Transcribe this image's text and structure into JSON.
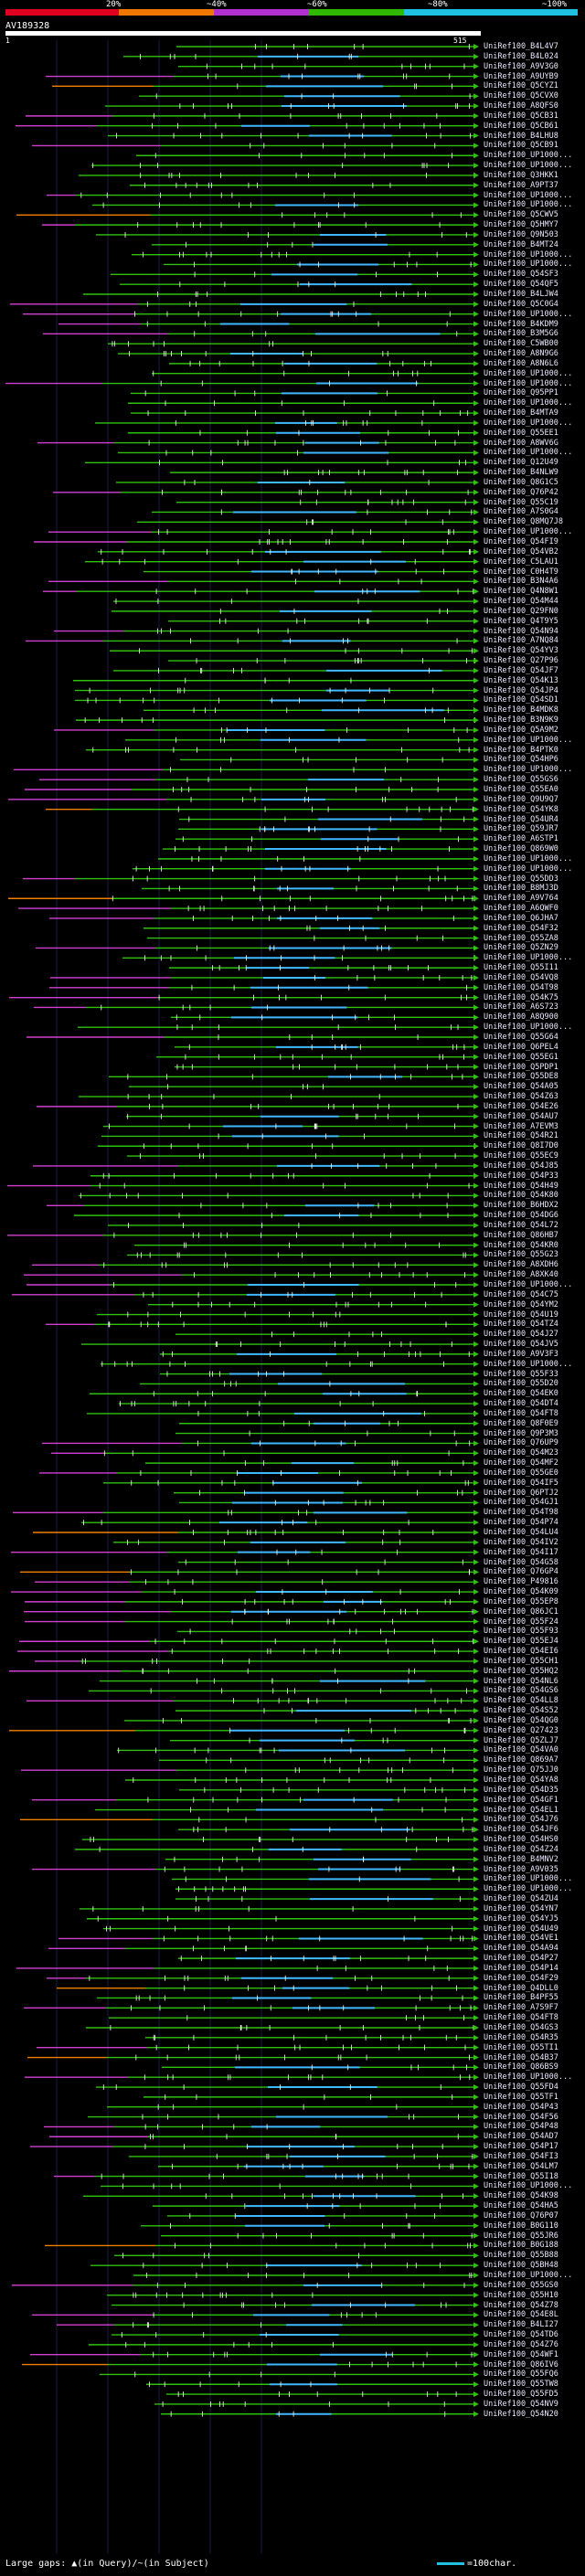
{
  "scale": {
    "labels": [
      "20%",
      "~40%",
      "~60%",
      "~80%",
      "~100%"
    ],
    "colors": [
      "#e00020",
      "#f07800",
      "#b030d0",
      "#30b800",
      "#20c0e0"
    ]
  },
  "query": {
    "id": "AV189328",
    "start": "1",
    "end": "515"
  },
  "colors": {
    "pink": "#d040d0",
    "green": "#30c010",
    "orange": "#f08000",
    "blue": "#40b8ff",
    "gray_grid": "#404040",
    "grid_blue": "#202060"
  },
  "hits": [
    "UniRef100_B4L4V7",
    "UniRef100_B4L024",
    "UniRef100_A9V3G0",
    "UniRef100_A9UYB9",
    "UniRef100_Q5CYZ1",
    "UniRef100_Q5CVX0",
    "UniRef100_A8QFS0",
    "UniRef100_Q5CB31",
    "UniRef100_Q5CB61",
    "UniRef100_B4LHU8",
    "UniRef100_Q5CB91",
    "UniRef100_UP1000...",
    "UniRef100_UP1000...",
    "UniRef100_Q3HKK1",
    "UniRef100_A9PT37",
    "UniRef100_UP1000...",
    "UniRef100_UP1000...",
    "UniRef100_Q5CWV5",
    "UniRef100_Q5HMY7",
    "UniRef100_Q9N503",
    "UniRef100_B4MT24",
    "UniRef100_UP1000...",
    "UniRef100_UP1000...",
    "UniRef100_Q54SF3",
    "UniRef100_Q54QF5",
    "UniRef100_B4LJW4",
    "UniRef100_Q5C0G4",
    "UniRef100_UP1000...",
    "UniRef100_B4KDM9",
    "UniRef100_B3M5G6",
    "UniRef100_C5WB00",
    "UniRef100_A8N9G6",
    "UniRef100_A8N6L6",
    "UniRef100_UP1000...",
    "UniRef100_UP1000...",
    "UniRef100_Q95PP1",
    "UniRef100_UP1000...",
    "UniRef100_B4MTA9",
    "UniRef100_UP1000...",
    "UniRef100_Q55EE1",
    "UniRef100_A8WV6G",
    "UniRef100_UP1000...",
    "UniRef100_Q12U49",
    "UniRef100_B4NLW9",
    "UniRef100_Q8G1C5",
    "UniRef100_Q76P42",
    "UniRef100_Q55C19",
    "UniRef100_A7S0G4",
    "UniRef100_Q8MQ7J8",
    "UniRef100_UP1000...",
    "UniRef100_Q54FI9",
    "UniRef100_Q54VB2",
    "UniRef100_C5LAU1",
    "UniRef100_C0H4T9",
    "UniRef100_B3N4A6",
    "UniRef100_Q4N8W1",
    "UniRef100_Q54M44",
    "UniRef100_Q29FN0",
    "UniRef100_Q4T9Y5",
    "UniRef100_Q54N94",
    "UniRef100_A7NQ84",
    "UniRef100_Q54YV3",
    "UniRef100_Q27P96",
    "UniRef100_Q54JF7",
    "UniRef100_Q54K13",
    "UniRef100_Q54JP4",
    "UniRef100_Q54SD1",
    "UniRef100_B4MDK8",
    "UniRef100_B3N9K9",
    "UniRef100_Q5A9M2",
    "UniRef100_UP1000...",
    "UniRef100_B4PTK0",
    "UniRef100_Q54HP6",
    "UniRef100_UP1000...",
    "UniRef100_Q55GS6",
    "UniRef100_Q55EA0",
    "UniRef100_Q9U9Q7",
    "UniRef100_Q54YK8",
    "UniRef100_Q54UR4",
    "UniRef100_Q59JR7",
    "UniRef100_A6STP1",
    "UniRef100_Q869W0",
    "UniRef100_UP1000...",
    "UniRef100_UP1000...",
    "UniRef100_Q55DD3",
    "UniRef100_B8MJ3D",
    "UniRef100_A9V764",
    "UniRef100_A6QWF0",
    "UniRef100_Q6JHA7",
    "UniRef100_Q54F32",
    "UniRef100_Q55ZA8",
    "UniRef100_Q5ZN29",
    "UniRef100_UP1000...",
    "UniRef100_Q55I11",
    "UniRef100_Q54VQ8",
    "UniRef100_Q54T98",
    "UniRef100_Q54K75",
    "UniRef100_A6S723",
    "UniRef100_A8Q900",
    "UniRef100_UP1000...",
    "UniRef100_Q55G64",
    "UniRef100_Q6PEL4",
    "UniRef100_Q55EG1",
    "UniRef100_Q5PDP1",
    "UniRef100_Q55DE8",
    "UniRef100_Q54A05",
    "UniRef100_Q54Z63",
    "UniRef100_Q54E26",
    "UniRef100_Q54AU7",
    "UniRef100_A7EVM3",
    "UniRef100_Q54R21",
    "UniRef100_Q8I7D0",
    "UniRef100_Q55EC9",
    "UniRef100_Q54J85",
    "UniRef100_Q54P33",
    "UniRef100_Q54H49",
    "UniRef100_Q54K80",
    "UniRef100_B6HDX2",
    "UniRef100_Q54DG6",
    "UniRef100_Q54L72",
    "UniRef100_Q86HB7",
    "UniRef100_Q54KR0",
    "UniRef100_Q55G23",
    "UniRef100_A8XDH6",
    "UniRef100_A8XK40",
    "UniRef100_UP1000...",
    "UniRef100_Q54C75",
    "UniRef100_Q54YM2",
    "UniRef100_Q54U19",
    "UniRef100_Q54TZ4",
    "UniRef100_Q54J27",
    "UniRef100_Q54JV5",
    "UniRef100_A9V3F3",
    "UniRef100_UP1000...",
    "UniRef100_Q55F33",
    "UniRef100_Q55D20",
    "UniRef100_Q54EK0",
    "UniRef100_Q54DT4",
    "UniRef100_Q54FT8",
    "UniRef100_Q8F0E9",
    "UniRef100_Q9P3M3",
    "UniRef100_Q76UP9",
    "UniRef100_Q54M23",
    "UniRef100_Q54MF2",
    "UniRef100_Q55GE0",
    "UniRef100_Q54IF5",
    "UniRef100_Q6PTJ2",
    "UniRef100_Q54GJ1",
    "UniRef100_Q54T98",
    "UniRef100_Q54P74",
    "UniRef100_Q54LU4",
    "UniRef100_Q54IV2",
    "UniRef100_Q54I17",
    "UniRef100_Q54G58",
    "UniRef100_Q76GP4",
    "UniRef100_P49816",
    "UniRef100_Q54K09",
    "UniRef100_Q55EP8",
    "UniRef100_Q86JC1",
    "UniRef100_Q55F24",
    "UniRef100_Q55F93",
    "UniRef100_Q55EJ4",
    "UniRef100_Q54EI6",
    "UniRef100_Q55CH1",
    "UniRef100_Q55HQ2",
    "UniRef100_Q54NL6",
    "UniRef100_Q54GS6",
    "UniRef100_Q54LL8",
    "UniRef100_Q54S52",
    "UniRef100_Q54QG0",
    "UniRef100_Q27423",
    "UniRef100_Q5ZLJ7",
    "UniRef100_Q54VA0",
    "UniRef100_Q869A7",
    "UniRef100_Q75JJ0",
    "UniRef100_Q54YA8",
    "UniRef100_Q54D35",
    "UniRef100_Q54GF1",
    "UniRef100_Q54EL1",
    "UniRef100_Q54J76",
    "UniRef100_Q54JF6",
    "UniRef100_Q54HS0",
    "UniRef100_Q54Z24",
    "UniRef100_B4MNV2",
    "UniRef100_A9V035",
    "UniRef100_UP1000...",
    "UniRef100_UP1000...",
    "UniRef100_Q54ZU4",
    "UniRef100_Q54YN7",
    "UniRef100_Q54YJ5",
    "UniRef100_Q54U49",
    "UniRef100_Q54VE1",
    "UniRef100_Q54A94",
    "UniRef100_Q54P27",
    "UniRef100_Q54P14",
    "UniRef100_Q54F29",
    "UniRef100_Q4DLL0",
    "UniRef100_B4PF55",
    "UniRef100_A7S9F7",
    "UniRef100_Q54FT8",
    "UniRef100_Q54GS3",
    "UniRef100_Q54R35",
    "UniRef100_Q55TI1",
    "UniRef100_Q54B37",
    "UniRef100_Q86BS9",
    "UniRef100_UP1000...",
    "UniRef100_Q55FD4",
    "UniRef100_Q55TF1",
    "UniRef100_Q54P43",
    "UniRef100_Q54F56",
    "UniRef100_Q54P48",
    "UniRef100_Q54AD7",
    "UniRef100_Q54P17",
    "UniRef100_Q54FI3",
    "UniRef100_Q54LM7",
    "UniRef100_Q55I18",
    "UniRef100_UP1000...",
    "UniRef100_Q54K98",
    "UniRef100_Q54HA5",
    "UniRef100_Q76P07",
    "UniRef100_B0G110",
    "UniRef100_Q55JR6",
    "UniRef100_B0G188",
    "UniRef100_Q55B88",
    "UniRef100_Q5BH48",
    "UniRef100_UP1000...",
    "UniRef100_Q55GS0",
    "UniRef100_Q55H10",
    "UniRef100_Q54Z78",
    "UniRef100_Q54E8L",
    "UniRef100_B4LI27",
    "UniRef100_Q54TD6",
    "UniRef100_Q54Z76",
    "UniRef100_Q54WF1",
    "UniRef100_Q86IV6",
    "UniRef100_Q55FQ6",
    "UniRef100_Q55TW8",
    "UniRef100_Q55FD5",
    "UniRef100_Q54NV9",
    "UniRef100_Q54N20"
  ],
  "legend": {
    "text": "Large gaps: ▲(in Query)/~(in Subject)",
    "scale_text": "=100char."
  }
}
